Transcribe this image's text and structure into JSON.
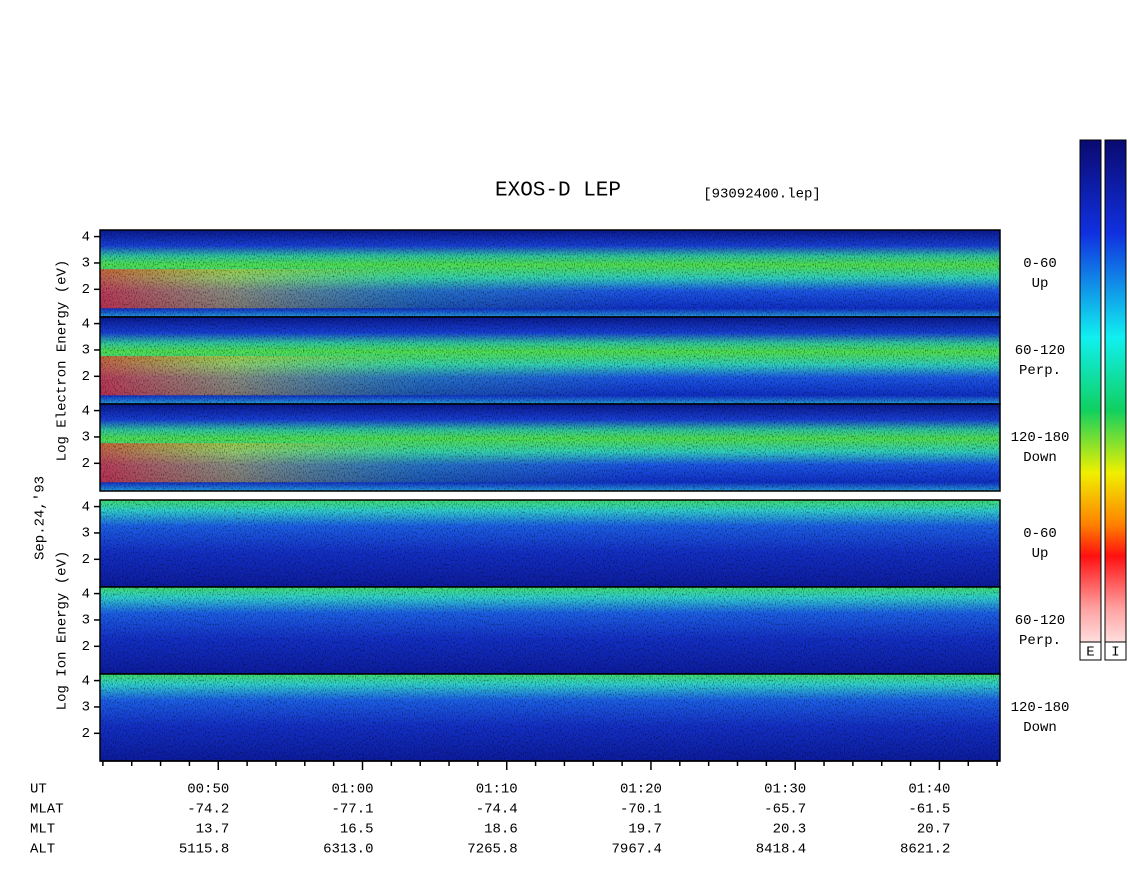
{
  "chart_data": {
    "type": "spectrogram",
    "title": "EXOS-D LEP",
    "subtitle": "[93092400.lep]",
    "date_label": "Sep.24,'93",
    "panel_groups": [
      {
        "ylabel": "Log Electron Energy (eV)",
        "panels": [
          {
            "label": "0-60",
            "sublabel": "Up"
          },
          {
            "label": "60-120",
            "sublabel": "Perp."
          },
          {
            "label": "120-180",
            "sublabel": "Down"
          }
        ]
      },
      {
        "ylabel": "Log Ion Energy (eV)",
        "panels": [
          {
            "label": "0-60",
            "sublabel": "Up"
          },
          {
            "label": "60-120",
            "sublabel": "Perp."
          },
          {
            "label": "120-180",
            "sublabel": "Down"
          }
        ]
      }
    ],
    "ylim": [
      0.95,
      4.25
    ],
    "yticks": [
      2,
      3,
      4
    ],
    "xlim": [
      41.8,
      104.2
    ],
    "xticks": [
      {
        "value": 50,
        "label": "00:50"
      },
      {
        "value": 60,
        "label": "01:00"
      },
      {
        "value": 70,
        "label": "01:10"
      },
      {
        "value": 80,
        "label": "01:20"
      },
      {
        "value": 90,
        "label": "01:30"
      },
      {
        "value": 100,
        "label": "01:40"
      }
    ],
    "xminorticks": [
      42,
      44,
      46,
      48,
      52,
      54,
      56,
      58,
      62,
      64,
      66,
      68,
      72,
      74,
      76,
      78,
      82,
      84,
      86,
      88,
      92,
      94,
      96,
      98,
      102,
      104
    ],
    "ephemeris": {
      "time_label": "UT",
      "rows": [
        {
          "name": "MLAT",
          "values": [
            "-74.2",
            "-77.1",
            "-74.4",
            "-70.1",
            "-65.7",
            "-61.5"
          ]
        },
        {
          "name": "MLT",
          "values": [
            "13.7",
            "16.5",
            "18.6",
            "19.7",
            "20.3",
            "20.7"
          ]
        },
        {
          "name": "ALT",
          "values": [
            "5115.8",
            "6313.0",
            "7265.8",
            "7967.4",
            "8418.4",
            "8621.2"
          ]
        }
      ]
    },
    "colorbar_labels": [
      "E",
      "I"
    ]
  }
}
